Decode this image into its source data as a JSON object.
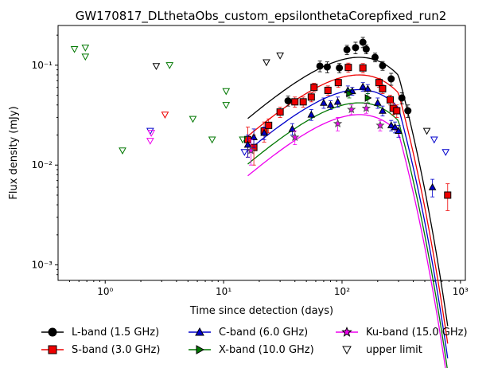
{
  "chart_data": {
    "type": "scatter",
    "title": "GW170817_DLthetaObs_custom_epsilonthetaCorepfixed_run2",
    "xlabel": "Time since detection (days)",
    "ylabel": "Flux density (mJy)",
    "xscale": "log",
    "yscale": "log",
    "xlim": [
      0.4,
      1100
    ],
    "ylim": [
      0.0007,
      0.25
    ],
    "x_ticks": [
      {
        "value": 1,
        "label": "10⁰"
      },
      {
        "value": 10,
        "label": "10¹"
      },
      {
        "value": 100,
        "label": "10²"
      },
      {
        "value": 1000,
        "label": "10³"
      }
    ],
    "y_ticks": [
      {
        "value": 0.001,
        "label": "10⁻³"
      },
      {
        "value": 0.01,
        "label": "10⁻²"
      },
      {
        "value": 0.1,
        "label": "10⁻¹"
      }
    ],
    "legend_position": "bottom",
    "upper_limit_label": "upper limit",
    "series": [
      {
        "name": "L-band (1.5 GHz)",
        "color": "#000000",
        "marker": "circle",
        "model": {
          "peak_t": 140,
          "peak_f": 0.12,
          "rise": 1.1,
          "t_break": 300,
          "decay": 3.2
        },
        "points": [
          {
            "x": 35,
            "y": 0.044,
            "err": 0.005
          },
          {
            "x": 65,
            "y": 0.098,
            "err": 0.012
          },
          {
            "x": 75,
            "y": 0.096,
            "err": 0.012
          },
          {
            "x": 95,
            "y": 0.094,
            "err": 0.01
          },
          {
            "x": 110,
            "y": 0.143,
            "err": 0.015
          },
          {
            "x": 130,
            "y": 0.15,
            "err": 0.02
          },
          {
            "x": 150,
            "y": 0.17,
            "err": 0.02
          },
          {
            "x": 160,
            "y": 0.145,
            "err": 0.015
          },
          {
            "x": 190,
            "y": 0.12,
            "err": 0.012
          },
          {
            "x": 220,
            "y": 0.099,
            "err": 0.01
          },
          {
            "x": 260,
            "y": 0.073,
            "err": 0.01
          },
          {
            "x": 320,
            "y": 0.047,
            "err": 0.006
          },
          {
            "x": 360,
            "y": 0.035,
            "err": 0.005
          }
        ],
        "upper_limits": [
          {
            "x": 2.7,
            "y": 0.098
          },
          {
            "x": 23,
            "y": 0.107
          },
          {
            "x": 30,
            "y": 0.125
          },
          {
            "x": 520,
            "y": 0.022
          }
        ]
      },
      {
        "name": "S-band (3.0 GHz)",
        "color": "#ee0000",
        "marker": "square",
        "model": {
          "peak_t": 140,
          "peak_f": 0.08,
          "rise": 1.1,
          "t_break": 300,
          "decay": 3.2
        },
        "points": [
          {
            "x": 16,
            "y": 0.018,
            "err": 0.006
          },
          {
            "x": 18,
            "y": 0.015,
            "err": 0.005
          },
          {
            "x": 22,
            "y": 0.022,
            "err": 0.005
          },
          {
            "x": 24,
            "y": 0.025,
            "err": 0.004
          },
          {
            "x": 30,
            "y": 0.034,
            "err": 0.004
          },
          {
            "x": 40,
            "y": 0.043,
            "err": 0.005
          },
          {
            "x": 47,
            "y": 0.043,
            "err": 0.005
          },
          {
            "x": 55,
            "y": 0.048,
            "err": 0.005
          },
          {
            "x": 58,
            "y": 0.06,
            "err": 0.006
          },
          {
            "x": 76,
            "y": 0.056,
            "err": 0.006
          },
          {
            "x": 93,
            "y": 0.067,
            "err": 0.007
          },
          {
            "x": 113,
            "y": 0.095,
            "err": 0.01
          },
          {
            "x": 150,
            "y": 0.094,
            "err": 0.01
          },
          {
            "x": 205,
            "y": 0.067,
            "err": 0.007
          },
          {
            "x": 220,
            "y": 0.058,
            "err": 0.006
          },
          {
            "x": 255,
            "y": 0.045,
            "err": 0.005
          },
          {
            "x": 270,
            "y": 0.037,
            "err": 0.005
          },
          {
            "x": 290,
            "y": 0.035,
            "err": 0.005
          },
          {
            "x": 780,
            "y": 0.005,
            "err": 0.0015
          }
        ],
        "upper_limits": [
          {
            "x": 3.2,
            "y": 0.032
          }
        ]
      },
      {
        "name": "C-band (6.0 GHz)",
        "color": "#0000cc",
        "marker": "triangle-up",
        "model": {
          "peak_t": 140,
          "peak_f": 0.057,
          "rise": 1.1,
          "t_break": 300,
          "decay": 3.2
        },
        "points": [
          {
            "x": 16,
            "y": 0.016,
            "err": 0.004
          },
          {
            "x": 18,
            "y": 0.019,
            "err": 0.004
          },
          {
            "x": 22,
            "y": 0.021,
            "err": 0.003
          },
          {
            "x": 38,
            "y": 0.023,
            "err": 0.003
          },
          {
            "x": 55,
            "y": 0.032,
            "err": 0.004
          },
          {
            "x": 70,
            "y": 0.042,
            "err": 0.005
          },
          {
            "x": 80,
            "y": 0.04,
            "err": 0.004
          },
          {
            "x": 92,
            "y": 0.043,
            "err": 0.005
          },
          {
            "x": 112,
            "y": 0.056,
            "err": 0.006
          },
          {
            "x": 122,
            "y": 0.055,
            "err": 0.005
          },
          {
            "x": 150,
            "y": 0.061,
            "err": 0.006
          },
          {
            "x": 165,
            "y": 0.058,
            "err": 0.006
          },
          {
            "x": 200,
            "y": 0.042,
            "err": 0.005
          },
          {
            "x": 220,
            "y": 0.035,
            "err": 0.004
          },
          {
            "x": 260,
            "y": 0.025,
            "err": 0.003
          },
          {
            "x": 280,
            "y": 0.024,
            "err": 0.003
          },
          {
            "x": 300,
            "y": 0.022,
            "err": 0.003
          },
          {
            "x": 580,
            "y": 0.006,
            "err": 0.0012
          }
        ],
        "upper_limits": [
          {
            "x": 2.4,
            "y": 0.022
          },
          {
            "x": 15,
            "y": 0.0135
          },
          {
            "x": 600,
            "y": 0.018
          },
          {
            "x": 750,
            "y": 0.0135
          }
        ]
      },
      {
        "name": "X-band (10.0 GHz)",
        "color": "#007700",
        "marker": "triangle-right",
        "model": {
          "peak_t": 140,
          "peak_f": 0.042,
          "rise": 1.1,
          "t_break": 300,
          "decay": 3.2
        },
        "points": [
          {
            "x": 115,
            "y": 0.052,
            "err": 0.005
          },
          {
            "x": 165,
            "y": 0.047,
            "err": 0.005
          }
        ],
        "upper_limits": [
          {
            "x": 0.55,
            "y": 0.145
          },
          {
            "x": 0.68,
            "y": 0.15
          },
          {
            "x": 0.68,
            "y": 0.122
          },
          {
            "x": 1.4,
            "y": 0.014
          },
          {
            "x": 3.5,
            "y": 0.1
          },
          {
            "x": 5.5,
            "y": 0.029
          },
          {
            "x": 8,
            "y": 0.018
          },
          {
            "x": 10.5,
            "y": 0.055
          },
          {
            "x": 10.5,
            "y": 0.04
          },
          {
            "x": 14.5,
            "y": 0.018
          }
        ]
      },
      {
        "name": "Ku-band (15.0 GHz)",
        "color": "#ee00ee",
        "marker": "star",
        "model": {
          "peak_t": 140,
          "peak_f": 0.032,
          "rise": 1.1,
          "t_break": 300,
          "decay": 3.2
        },
        "points": [
          {
            "x": 17,
            "y": 0.014,
            "err": 0.004
          },
          {
            "x": 40,
            "y": 0.019,
            "err": 0.003
          },
          {
            "x": 92,
            "y": 0.026,
            "err": 0.004
          },
          {
            "x": 120,
            "y": 0.036,
            "err": 0.004
          },
          {
            "x": 160,
            "y": 0.037,
            "err": 0.004
          },
          {
            "x": 210,
            "y": 0.025,
            "err": 0.003
          }
        ],
        "upper_limits": [
          {
            "x": 2.45,
            "y": 0.021
          },
          {
            "x": 2.4,
            "y": 0.0175
          }
        ]
      }
    ]
  }
}
